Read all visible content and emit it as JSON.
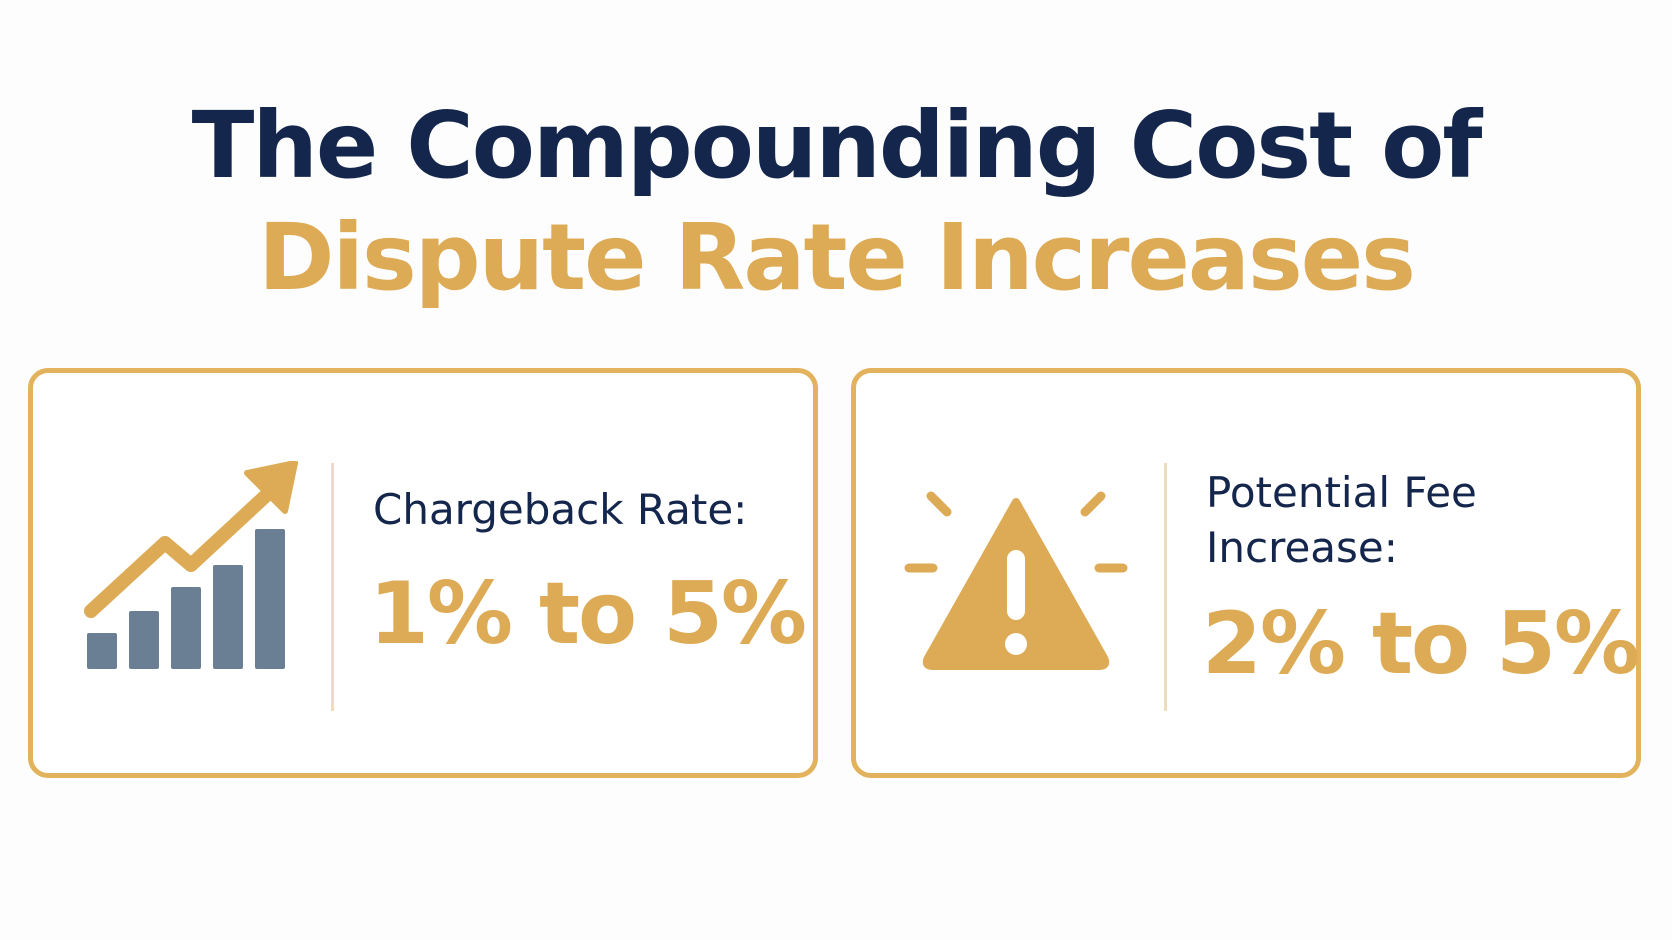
{
  "title": {
    "line1": "The Compounding Cost of",
    "line2": "Dispute Rate Increases"
  },
  "cards": [
    {
      "icon": "growth-chart-icon",
      "label_line1": "Chargeback Rate:",
      "value": "1% to 5%"
    },
    {
      "icon": "warning-icon",
      "label_line1": "Potential Fee",
      "label_line2": "Increase:",
      "value": "2% to 5%"
    }
  ],
  "colors": {
    "navy": "#14264b",
    "gold": "#ddaa55",
    "slate": "#6b7f94",
    "border": "#e2b25c"
  }
}
